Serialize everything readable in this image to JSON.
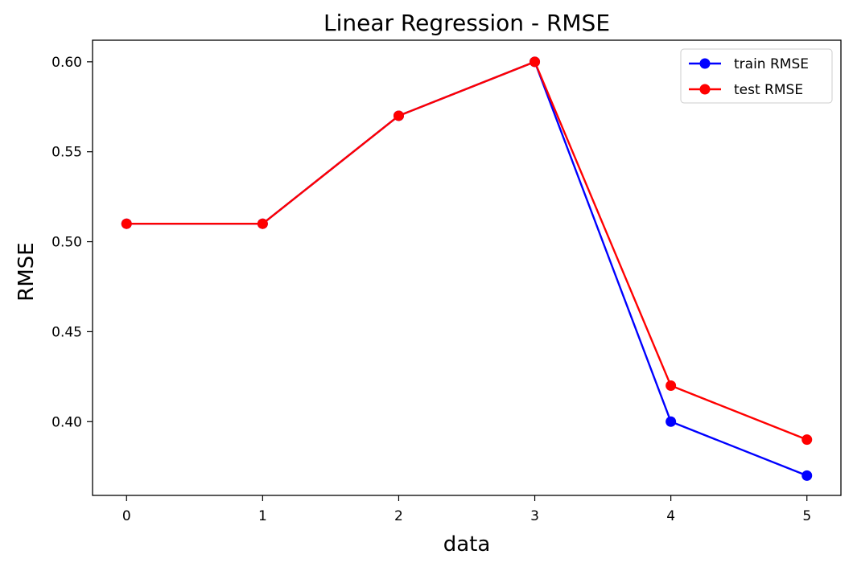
{
  "chart_data": {
    "type": "line",
    "title": "Linear Regression - RMSE",
    "xlabel": "data",
    "ylabel": "RMSE",
    "x": [
      0,
      1,
      2,
      3,
      4,
      5
    ],
    "xticks": [
      "0",
      "1",
      "2",
      "3",
      "4",
      "5"
    ],
    "yticks": [
      "0.40",
      "0.45",
      "0.50",
      "0.55",
      "0.60"
    ],
    "ytick_values": [
      0.4,
      0.45,
      0.5,
      0.55,
      0.6
    ],
    "xlim": [
      -0.25,
      5.25
    ],
    "ylim": [
      0.359,
      0.612
    ],
    "grid": false,
    "legend_position": "top-right",
    "series": [
      {
        "name": "train RMSE",
        "color": "#0000ff",
        "values": [
          0.51,
          0.51,
          0.57,
          0.6,
          0.4,
          0.37
        ]
      },
      {
        "name": "test RMSE",
        "color": "#ff0000",
        "values": [
          0.51,
          0.51,
          0.57,
          0.6,
          0.42,
          0.39
        ]
      }
    ]
  }
}
